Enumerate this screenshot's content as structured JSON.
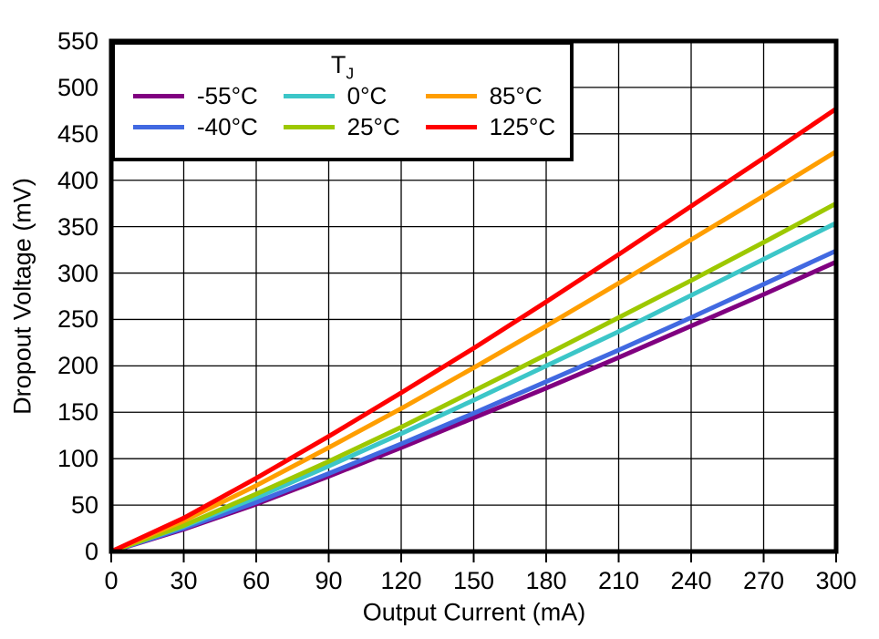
{
  "chart_data": {
    "type": "line",
    "title": "",
    "xlabel": "Output Current (mA)",
    "ylabel": "Dropout Voltage (mV)",
    "xlim": [
      0,
      300
    ],
    "ylim": [
      0,
      550
    ],
    "xticks": [
      0,
      30,
      60,
      90,
      120,
      150,
      180,
      210,
      240,
      270,
      300
    ],
    "yticks": [
      0,
      50,
      100,
      150,
      200,
      250,
      300,
      350,
      400,
      450,
      500,
      550
    ],
    "grid": true,
    "frame_color": "#000000",
    "legend": {
      "title_main": "T",
      "title_sub": "J",
      "position": "top-left"
    },
    "x": [
      0,
      30,
      60,
      90,
      120,
      150,
      180,
      210,
      240,
      270,
      300
    ],
    "series": [
      {
        "name": "-55°C",
        "color": "#800080",
        "values": [
          0,
          24,
          51,
          81,
          112,
          144,
          176,
          209,
          243,
          277,
          312
        ]
      },
      {
        "name": "-40°C",
        "color": "#4169E1",
        "values": [
          0,
          25,
          53,
          84,
          116,
          149,
          183,
          217,
          252,
          288,
          324
        ]
      },
      {
        "name": "0°C",
        "color": "#3CC6C8",
        "values": [
          0,
          27,
          58,
          92,
          127,
          163,
          200,
          237,
          276,
          315,
          354
        ]
      },
      {
        "name": "25°C",
        "color": "#9DC800",
        "values": [
          0,
          28,
          62,
          97,
          134,
          173,
          212,
          252,
          292,
          333,
          375
        ]
      },
      {
        "name": "85°C",
        "color": "#FF9E00",
        "values": [
          0,
          33,
          71,
          112,
          154,
          198,
          243,
          289,
          336,
          383,
          431
        ]
      },
      {
        "name": "125°C",
        "color": "#FF0000",
        "values": [
          0,
          36,
          79,
          124,
          171,
          219,
          269,
          320,
          372,
          424,
          477
        ]
      }
    ]
  }
}
